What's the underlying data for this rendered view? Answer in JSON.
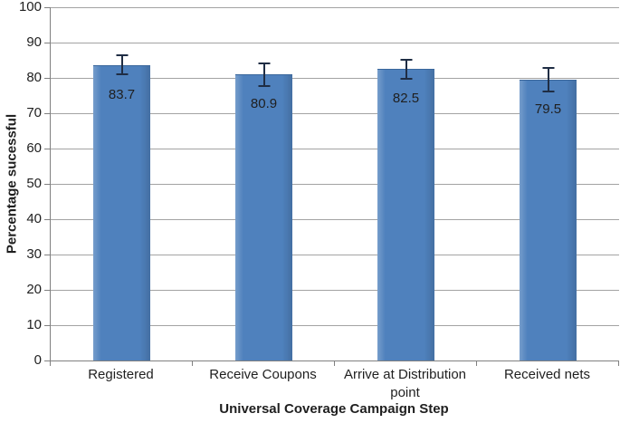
{
  "chart_data": {
    "type": "bar",
    "title": "",
    "xlabel": "Universal Coverage Campaign Step",
    "ylabel": "Percentage sucessful",
    "categories": [
      "Registered",
      "Receive Coupons",
      "Arrive at Distribution point",
      "Received nets"
    ],
    "values": [
      83.7,
      80.9,
      82.5,
      79.5
    ],
    "data_labels": [
      "83.7",
      "80.9",
      "82.5",
      "79.5"
    ],
    "error_bars": {
      "plus": [
        2.9,
        3.4,
        2.9,
        3.5
      ],
      "minus": [
        2.9,
        3.4,
        2.9,
        3.5
      ]
    },
    "ylim": [
      0,
      100
    ],
    "yticks": [
      0,
      10,
      20,
      30,
      40,
      50,
      60,
      70,
      80,
      90,
      100
    ],
    "grid": true,
    "legend": false,
    "colors": {
      "bar_fill": "#4F81BD",
      "bar_edge": "#3A679C",
      "gridline": "#A3A3A3",
      "axis_line": "#808080",
      "error_bar": "#1F2D44",
      "text": "#1F1F1F",
      "background": "#FFFFFF"
    }
  }
}
